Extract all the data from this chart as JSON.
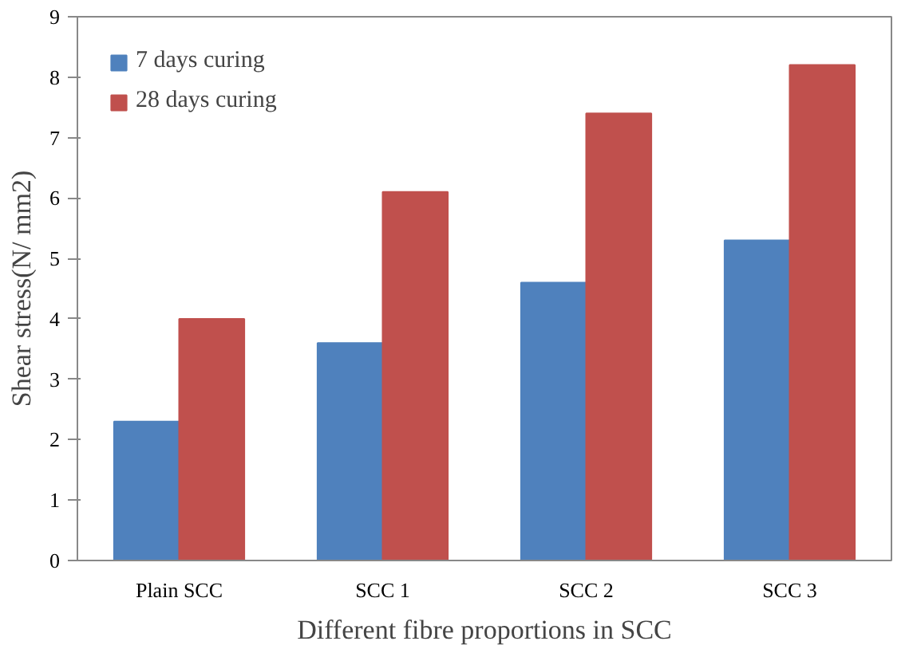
{
  "chart_data": {
    "type": "bar",
    "xlabel": "Different fibre proportions in SCC",
    "ylabel": "Shear stress(N/ mm2)",
    "categories": [
      "Plain SCC",
      "SCC 1",
      "SCC 2",
      "SCC 3"
    ],
    "series": [
      {
        "name": "7 days curing",
        "color": "#4f81bd",
        "values": [
          2.3,
          3.6,
          4.6,
          5.3
        ]
      },
      {
        "name": "28 days curing",
        "color": "#c0504d",
        "values": [
          4.0,
          6.1,
          7.4,
          8.2
        ]
      }
    ],
    "ylim": [
      0,
      9
    ],
    "yticks": [
      0,
      1,
      2,
      3,
      4,
      5,
      6,
      7,
      8,
      9
    ],
    "grid": false,
    "legend": "top left"
  }
}
